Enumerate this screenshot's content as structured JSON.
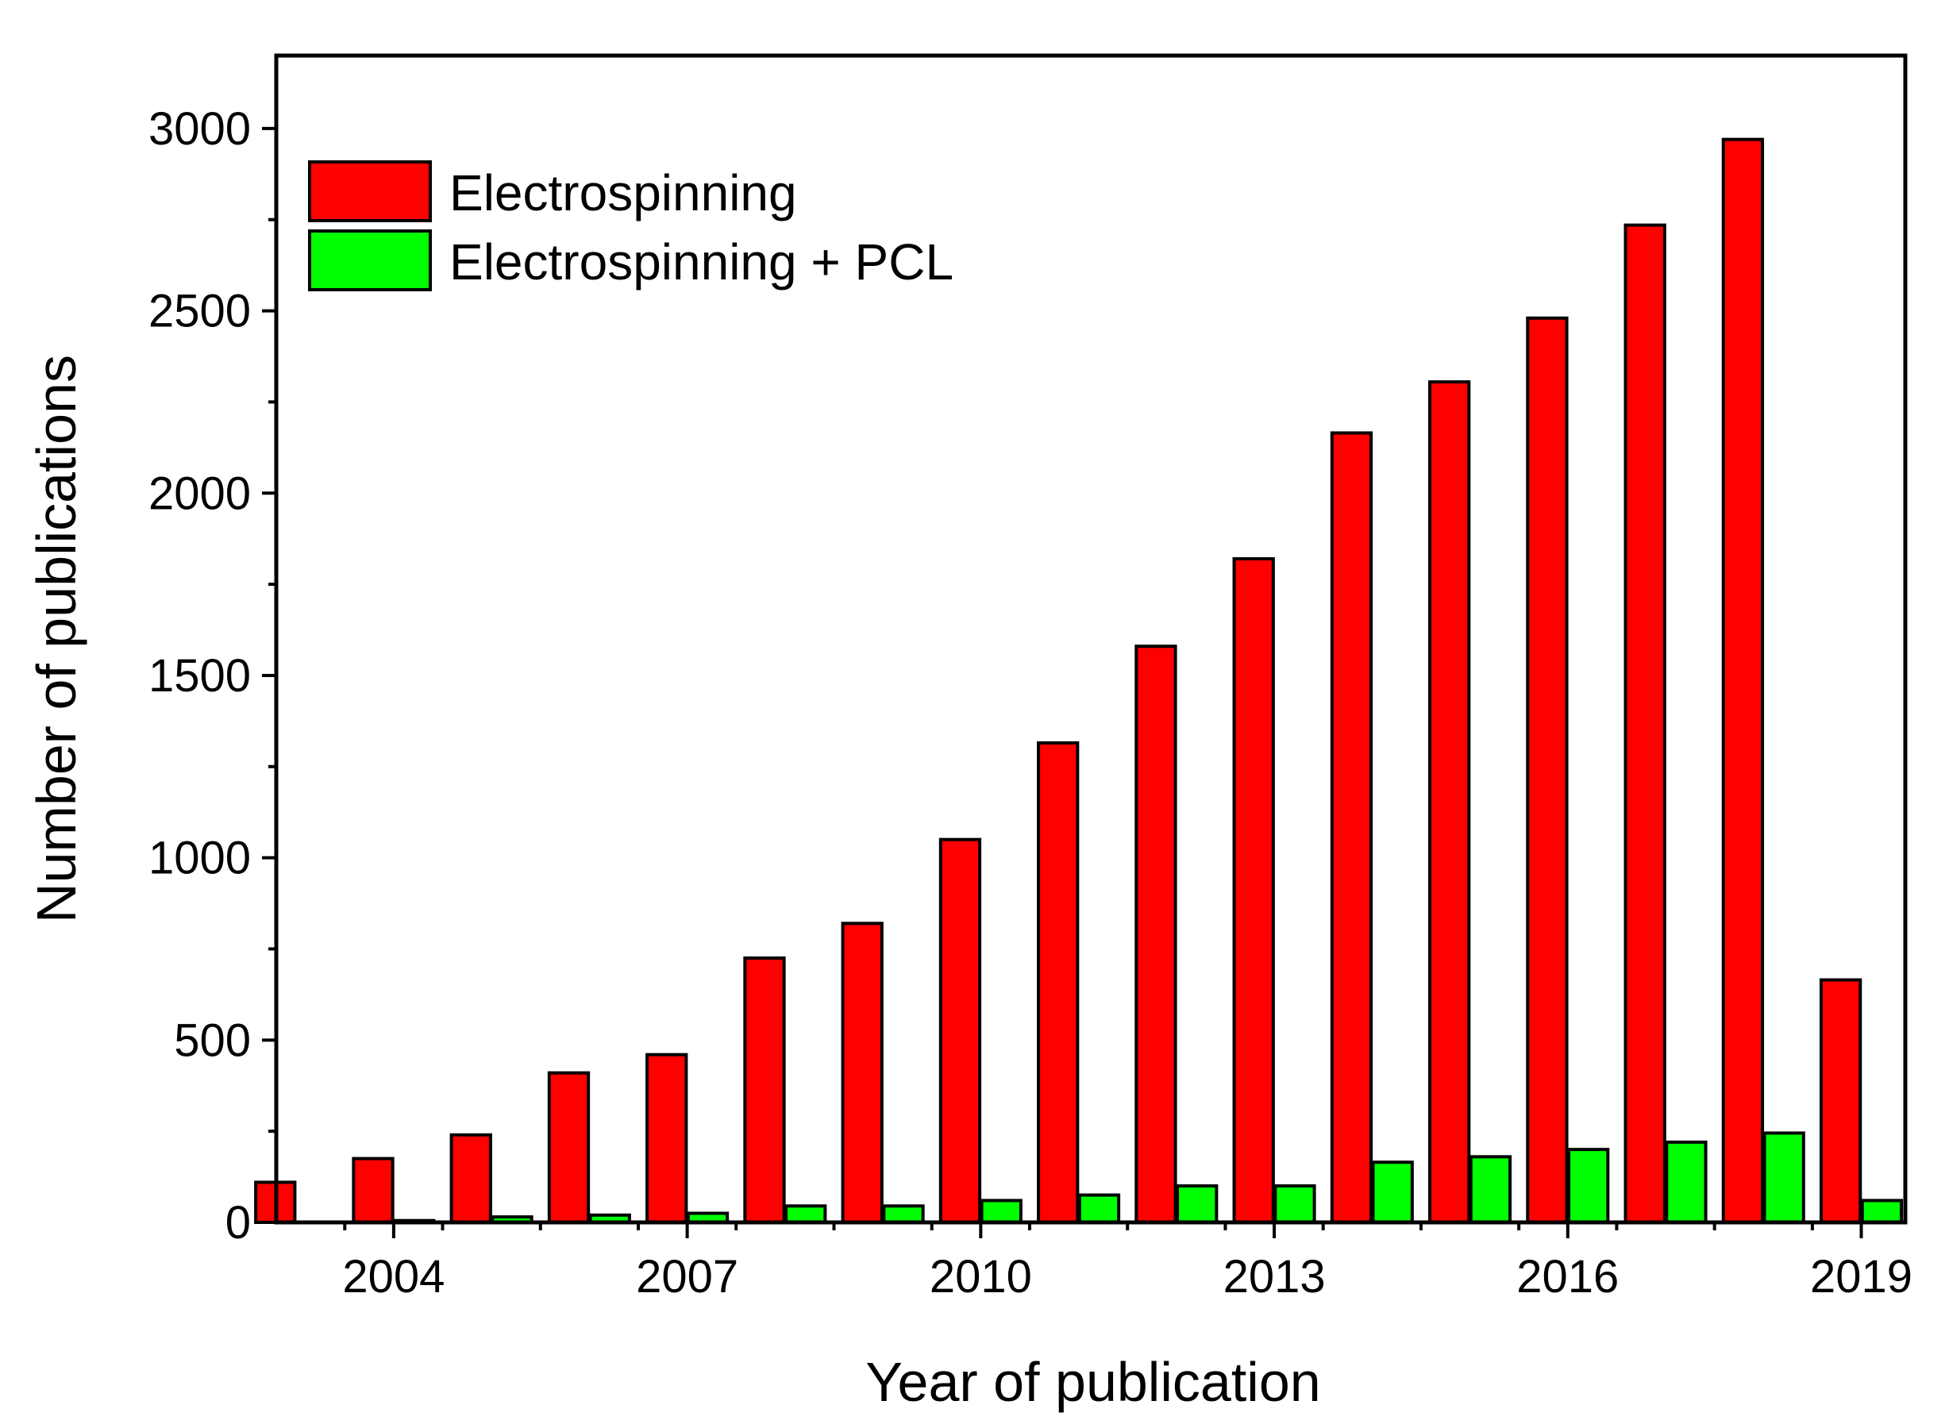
{
  "chart_data": {
    "type": "bar",
    "title": "",
    "xlabel": "Year of publication",
    "ylabel": "Number of publications",
    "categories": [
      2003,
      2004,
      2005,
      2006,
      2007,
      2008,
      2009,
      2010,
      2011,
      2012,
      2013,
      2014,
      2015,
      2016,
      2017,
      2018,
      2019
    ],
    "x_tick_labels": [
      "2004",
      "2007",
      "2010",
      "2013",
      "2016",
      "2019"
    ],
    "y_tick_labels": [
      "0",
      "500",
      "1000",
      "1500",
      "2000",
      "2500",
      "3000"
    ],
    "ylim": [
      0,
      3200
    ],
    "xlim": [
      2002.8,
      2019.45
    ],
    "legend_position": "top-left",
    "series": [
      {
        "name": "Electrospinning",
        "color": "#ff0000",
        "values": [
          110,
          175,
          240,
          410,
          460,
          725,
          820,
          1050,
          1315,
          1580,
          1820,
          2165,
          2305,
          2480,
          2735,
          2970,
          665
        ]
      },
      {
        "name": "Electrospinning + PCL",
        "color": "#00ff00",
        "values": [
          0,
          5,
          15,
          20,
          25,
          45,
          45,
          60,
          75,
          100,
          100,
          165,
          180,
          200,
          220,
          245,
          60
        ]
      }
    ]
  }
}
